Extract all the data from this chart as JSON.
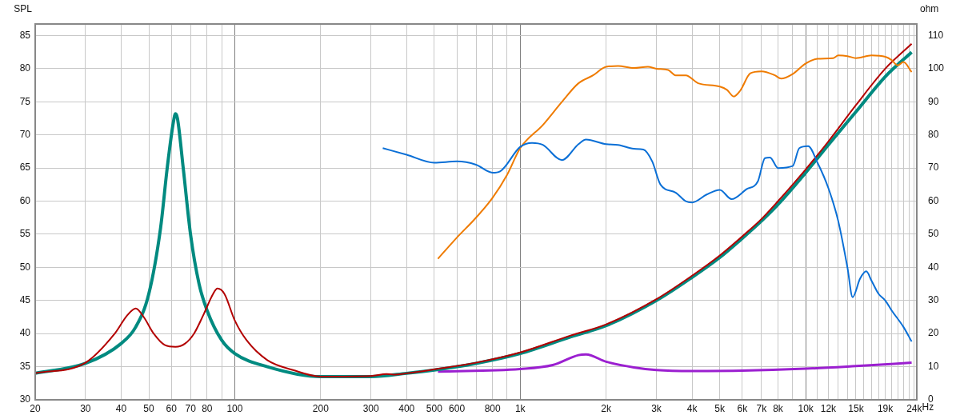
{
  "chart_data": {
    "type": "line",
    "ylabel": "SPL",
    "xlabel": "Hz",
    "y2label": "ohm",
    "log": "x",
    "grid": true,
    "legend": false,
    "marker": "none",
    "line_style": "solid",
    "xlim": [
      20,
      24500
    ],
    "ylim": [
      30,
      86.75
    ],
    "y2lim": [
      0,
      113.5
    ],
    "xticks": [
      {
        "value": 20,
        "label": "20"
      },
      {
        "value": 30,
        "label": "30"
      },
      {
        "value": 40,
        "label": "40"
      },
      {
        "value": 50,
        "label": "50"
      },
      {
        "value": 60,
        "label": "60"
      },
      {
        "value": 70,
        "label": "70"
      },
      {
        "value": 80,
        "label": "80"
      },
      {
        "value": 90,
        "label": null
      },
      {
        "value": 100,
        "label": "100"
      },
      {
        "value": 200,
        "label": "200"
      },
      {
        "value": 300,
        "label": "300"
      },
      {
        "value": 400,
        "label": "400"
      },
      {
        "value": 500,
        "label": "500"
      },
      {
        "value": 600,
        "label": "600"
      },
      {
        "value": 700,
        "label": null
      },
      {
        "value": 800,
        "label": "800"
      },
      {
        "value": 900,
        "label": null
      },
      {
        "value": 1000,
        "label": "1k"
      },
      {
        "value": 2000,
        "label": "2k"
      },
      {
        "value": 3000,
        "label": "3k"
      },
      {
        "value": 4000,
        "label": "4k"
      },
      {
        "value": 5000,
        "label": "5k"
      },
      {
        "value": 6000,
        "label": "6k"
      },
      {
        "value": 7000,
        "label": "7k"
      },
      {
        "value": 8000,
        "label": "8k"
      },
      {
        "value": 9000,
        "label": null
      },
      {
        "value": 10000,
        "label": "10k"
      },
      {
        "value": 11000,
        "label": null
      },
      {
        "value": 12000,
        "label": "12k"
      },
      {
        "value": 13000,
        "label": null
      },
      {
        "value": 14000,
        "label": null
      },
      {
        "value": 15000,
        "label": "15k"
      },
      {
        "value": 16000,
        "label": null
      },
      {
        "value": 17000,
        "label": null
      },
      {
        "value": 18000,
        "label": null
      },
      {
        "value": 19000,
        "label": "19k"
      },
      {
        "value": 20000,
        "label": null
      },
      {
        "value": 21000,
        "label": null
      },
      {
        "value": 22000,
        "label": null
      },
      {
        "value": 23000,
        "label": null
      },
      {
        "value": 24000,
        "label": "24k"
      }
    ],
    "yticks": [
      30,
      35,
      40,
      45,
      50,
      55,
      60,
      65,
      70,
      75,
      80,
      85
    ],
    "y2ticks": [
      0,
      10,
      20,
      30,
      40,
      50,
      60,
      70,
      80,
      90,
      100,
      110
    ],
    "series": [
      {
        "color": "#0a6fd6",
        "axis": "y",
        "x": [
          330,
          400,
          500,
          600,
          700,
          800,
          850,
          1000,
          1100,
          1200,
          1400,
          1600,
          1700,
          2000,
          2200,
          2500,
          2700,
          2900,
          3100,
          3500,
          3800,
          4000,
          4500,
          5000,
          5500,
          6200,
          6800,
          7200,
          7500,
          8000,
          9000,
          9500,
          10200,
          11000,
          12000,
          13000,
          14000,
          14600,
          15500,
          16300,
          17000,
          18000,
          19000,
          20000,
          22000,
          23500
        ],
        "values": [
          68,
          67,
          65.8,
          66,
          65.5,
          64.3,
          64.5,
          68.2,
          68.8,
          68.5,
          66.2,
          68.6,
          69.3,
          68.6,
          68.5,
          67.9,
          67.8,
          66,
          62.5,
          61.3,
          60,
          59.8,
          61,
          61.7,
          60.3,
          61.8,
          63,
          66.5,
          66.6,
          65,
          65.3,
          68,
          68.3,
          65.8,
          62,
          57,
          50,
          45.5,
          48.3,
          49.4,
          48,
          46,
          45,
          43.5,
          41,
          38.8
        ]
      },
      {
        "color": "#ef7b00",
        "axis": "y",
        "x": [
          515,
          600,
          700,
          800,
          900,
          1000,
          1200,
          1400,
          1600,
          1800,
          2000,
          2200,
          2500,
          2800,
          3000,
          3300,
          3500,
          3800,
          4200,
          5000,
          5300,
          5600,
          5900,
          6400,
          7000,
          7800,
          8200,
          9000,
          10000,
          11000,
          12500,
          13000,
          14000,
          15000,
          17000,
          19000,
          20000,
          21000,
          22000,
          23500
        ],
        "values": [
          51.3,
          54.5,
          57.5,
          60.5,
          64,
          68,
          71.5,
          75,
          77.8,
          79,
          80.3,
          80.4,
          80.1,
          80.3,
          80,
          79.8,
          79,
          79,
          77.8,
          77.3,
          76.8,
          75.8,
          76.7,
          79.3,
          79.6,
          79,
          78.5,
          79.2,
          80.8,
          81.5,
          81.6,
          82,
          81.9,
          81.6,
          82,
          81.8,
          81.3,
          80.5,
          81,
          79.5
        ]
      },
      {
        "color": "#b30000",
        "axis": "y2",
        "x": [
          20,
          30,
          38,
          42,
          45,
          48,
          52,
          57,
          62,
          67,
          72,
          78,
          84,
          87,
          92,
          100,
          110,
          130,
          160,
          200,
          300,
          340,
          360,
          400,
          500,
          700,
          1000,
          1500,
          2000,
          3000,
          4000,
          5000,
          6000,
          7000,
          8000,
          10000,
          12000,
          15000,
          19000,
          23500
        ],
        "values": [
          8,
          11.2,
          20,
          25.5,
          27.6,
          25,
          20,
          16.5,
          16,
          17,
          20,
          26,
          32,
          33.6,
          32,
          24,
          18,
          12,
          9,
          7,
          7.2,
          7.8,
          7.6,
          8,
          9.2,
          11.2,
          14.3,
          19.4,
          22.8,
          30.4,
          37.5,
          43.6,
          49.4,
          54.6,
          60,
          69.6,
          78,
          89,
          100,
          107.5
        ]
      },
      {
        "color": "#008a80",
        "axis": "y2",
        "x": [
          20,
          30,
          40,
          45,
          50,
          55,
          58,
          61,
          62,
          63,
          66,
          70,
          75,
          80,
          90,
          100,
          130,
          200,
          300,
          400,
          500,
          700,
          1000,
          1500,
          2000,
          3000,
          4000,
          5000,
          6000,
          7000,
          8000,
          10000,
          12000,
          15000,
          19000,
          23500
        ],
        "values": [
          8,
          11,
          17,
          22,
          32,
          52,
          70,
          84,
          86.4,
          85,
          70,
          50,
          35,
          27,
          18,
          14,
          10,
          7,
          7,
          8,
          9,
          11,
          14,
          19,
          22.4,
          30,
          37,
          43,
          48.8,
          54,
          59,
          68.6,
          77,
          87,
          97.6,
          105
        ]
      },
      {
        "color": "#9b1fd0",
        "axis": "y2",
        "x": [
          515,
          1000,
          1300,
          1600,
          1700,
          2000,
          2500,
          3000,
          4000,
          6000,
          10000,
          15000,
          23500
        ],
        "values": [
          8.5,
          9.3,
          10.5,
          13.5,
          13.7,
          11.5,
          9.8,
          9,
          8.7,
          8.8,
          9.4,
          10.2,
          11.2
        ]
      }
    ]
  }
}
